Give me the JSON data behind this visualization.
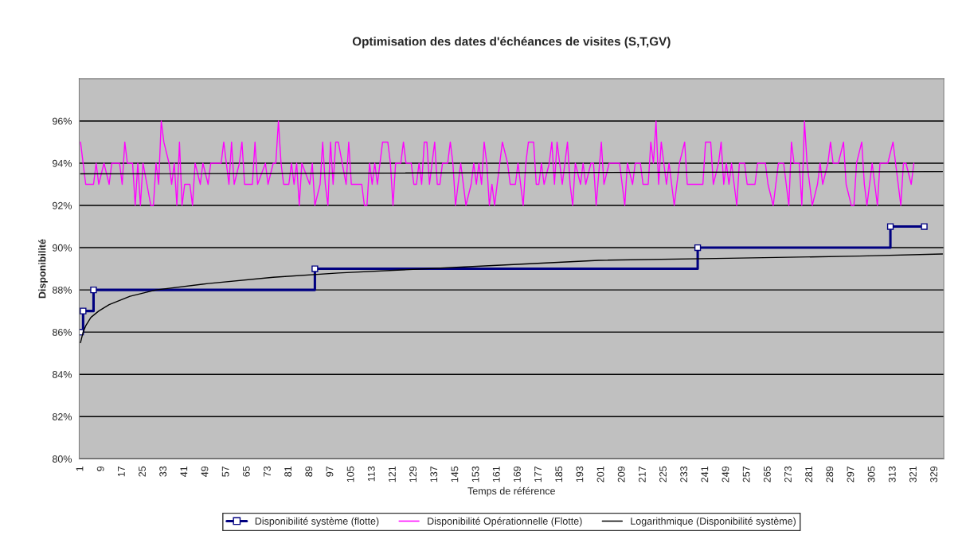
{
  "chart_data": {
    "type": "line",
    "title": "Optimisation des dates d'échéances de visites (S,T,GV)",
    "xlabel": "Temps de référence",
    "ylabel": "Disponibilité",
    "xlim": [
      0.5,
      332.5
    ],
    "xticks": [
      1,
      9,
      17,
      25,
      33,
      41,
      49,
      57,
      65,
      73,
      81,
      89,
      97,
      105,
      113,
      121,
      129,
      137,
      145,
      153,
      161,
      169,
      177,
      185,
      193,
      201,
      209,
      217,
      225,
      233,
      241,
      249,
      257,
      265,
      273,
      281,
      289,
      297,
      305,
      313,
      321,
      329
    ],
    "ylim": [
      80,
      98
    ],
    "yticks": [
      {
        "value": 80,
        "label": "80%"
      },
      {
        "value": 82,
        "label": "82%"
      },
      {
        "value": 84,
        "label": "84%"
      },
      {
        "value": 86,
        "label": "86%"
      },
      {
        "value": 88,
        "label": "88%"
      },
      {
        "value": 90,
        "label": "90%"
      },
      {
        "value": 92,
        "label": "92%"
      },
      {
        "value": 94,
        "label": "94%"
      },
      {
        "value": 96,
        "label": "96%"
      }
    ],
    "grid": "y",
    "legend": "bottom",
    "series": [
      {
        "name": "Disponibilité système (flotte)",
        "type": "step",
        "color": "#000080",
        "marker": "square",
        "x": [
          1,
          2,
          6,
          91,
          238,
          312,
          325
        ],
        "values": [
          86,
          87,
          88,
          89,
          90,
          91,
          91
        ]
      },
      {
        "name": "Disponibilité Opérationnelle (Flotte)",
        "color": "#ff00ff",
        "marker": "none",
        "x": [
          1,
          3,
          6,
          7,
          8,
          10,
          12,
          13,
          16,
          17,
          18,
          19,
          21,
          22,
          23,
          24,
          25,
          28,
          29,
          30,
          31,
          32,
          33,
          35,
          36,
          37,
          38,
          39,
          40,
          41,
          43,
          44,
          45,
          47,
          48,
          50,
          51,
          55,
          56,
          58,
          59,
          60,
          62,
          63,
          64,
          67,
          68,
          69,
          72,
          73,
          75,
          76,
          77,
          78,
          79,
          81,
          82,
          83,
          84,
          85,
          86,
          89,
          90,
          91,
          93,
          94,
          95,
          96,
          97,
          98,
          99,
          100,
          103,
          104,
          105,
          109,
          110,
          111,
          112,
          113,
          114,
          115,
          117,
          119,
          120,
          121,
          122,
          124,
          125,
          126,
          128,
          129,
          130,
          131,
          132,
          133,
          134,
          135,
          137,
          138,
          139,
          140,
          142,
          143,
          144,
          145,
          146,
          147,
          149,
          151,
          152,
          153,
          154,
          155,
          156,
          157,
          158,
          159,
          160,
          162,
          163,
          165,
          166,
          168,
          169,
          171,
          172,
          173,
          175,
          176,
          177,
          178,
          179,
          181,
          182,
          183,
          184,
          186,
          187,
          188,
          189,
          190,
          191,
          193,
          194,
          195,
          197,
          198,
          199,
          201,
          202,
          204,
          207,
          208,
          210,
          211,
          213,
          214,
          216,
          217,
          219,
          220,
          221,
          222,
          223,
          224,
          225,
          226,
          227,
          229,
          230,
          231,
          233,
          234,
          240,
          241,
          243,
          244,
          246,
          247,
          248,
          249,
          250,
          251,
          253,
          254,
          256,
          257,
          260,
          261,
          264,
          265,
          267,
          269,
          271,
          273,
          274,
          275,
          277,
          278,
          279,
          280,
          282,
          284,
          285,
          286,
          288,
          289,
          290,
          291,
          292,
          294,
          295,
          297,
          298,
          299,
          301,
          302,
          303,
          305,
          307,
          308,
          311,
          313,
          314,
          316,
          317,
          318,
          320,
          321
        ],
        "values": [
          95,
          93,
          93,
          94,
          93,
          94,
          93,
          94,
          94,
          93,
          95,
          94,
          94,
          92,
          94,
          92,
          94,
          92,
          92,
          94,
          93,
          96,
          95,
          94,
          93,
          94,
          92,
          95,
          92,
          93,
          93,
          92,
          94,
          93,
          94,
          93,
          94,
          94,
          95,
          93,
          95,
          93,
          94,
          95,
          93,
          93,
          95,
          93,
          94,
          93,
          94,
          94,
          96,
          94,
          93,
          93,
          94,
          93,
          94,
          92,
          94,
          93,
          94,
          92,
          93,
          95,
          93,
          92,
          95,
          93,
          95,
          95,
          93,
          95,
          93,
          93,
          92,
          92,
          94,
          93,
          94,
          93,
          95,
          95,
          94,
          92,
          94,
          94,
          95,
          94,
          94,
          93,
          93,
          94,
          93,
          95,
          95,
          93,
          95,
          93,
          93,
          94,
          94,
          95,
          94,
          92,
          93,
          94,
          92,
          93,
          94,
          93,
          94,
          93,
          95,
          94,
          92,
          93,
          92,
          94,
          95,
          94,
          93,
          93,
          94,
          92,
          94,
          95,
          95,
          93,
          93,
          94,
          93,
          94,
          95,
          93,
          95,
          93,
          94,
          95,
          93,
          92,
          94,
          93,
          94,
          93,
          94,
          94,
          92,
          95,
          93,
          94,
          94,
          94,
          92,
          94,
          93,
          94,
          94,
          93,
          93,
          95,
          94,
          96,
          93,
          95,
          94,
          93,
          94,
          92,
          93,
          94,
          95,
          93,
          93,
          95,
          95,
          93,
          94,
          95,
          93,
          94,
          93,
          94,
          92,
          94,
          94,
          93,
          93,
          94,
          94,
          93,
          92,
          94,
          94,
          92,
          95,
          94,
          94,
          92,
          96,
          94,
          92,
          93,
          94,
          93,
          94,
          95,
          94,
          94,
          94,
          95,
          93,
          92,
          92,
          94,
          95,
          93,
          92,
          94,
          92,
          94,
          94,
          95,
          94,
          92,
          94,
          94,
          93,
          94
        ]
      },
      {
        "name": "Logarithmique (Disponibilité système)",
        "color": "#000000",
        "marker": "none",
        "x": [
          1,
          2,
          3,
          5,
          8,
          12,
          20,
          30,
          50,
          75,
          100,
          150,
          200,
          250,
          300,
          332
        ],
        "values": [
          85.5,
          86.0,
          86.3,
          86.7,
          87.0,
          87.3,
          87.7,
          88.0,
          88.3,
          88.6,
          88.8,
          89.1,
          89.4,
          89.5,
          89.6,
          89.7
        ]
      },
      {
        "color": "#000000",
        "marker": "none",
        "x": [
          1,
          332
        ],
        "values": [
          93.5,
          93.6
        ]
      }
    ]
  }
}
